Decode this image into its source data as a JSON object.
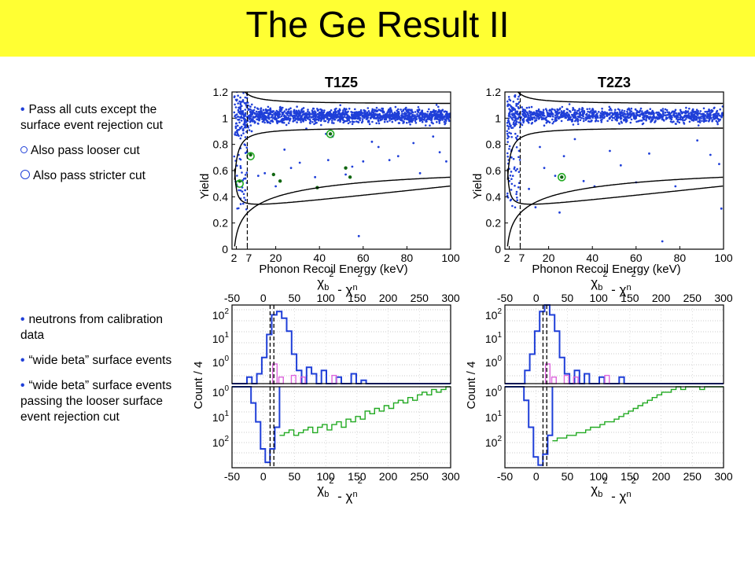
{
  "slide": {
    "title": "The Ge Result II",
    "bullets_top": [
      {
        "marker": "•",
        "text": "Pass all cuts except the surface event rejection cut"
      },
      {
        "marker": "o",
        "text": "Also pass looser cut"
      },
      {
        "marker": "O",
        "text": "Also pass stricter cut"
      }
    ],
    "bullets_bottom": [
      {
        "marker": "•",
        "text": "neutrons from calibration data"
      },
      {
        "marker": "•",
        "text": "“wide beta” surface events"
      },
      {
        "marker": "•",
        "text": "“wide beta” surface events passing the looser surface event rejection cut"
      }
    ],
    "colors": {
      "title_bg": "#ffff33",
      "events": "#1f3fd8",
      "neutrons": "#1f3fd8",
      "surface": "#22aa22",
      "surface_looser": "#dd66dd"
    }
  },
  "chart_data": [
    {
      "type": "scatter",
      "title": "T1Z5",
      "xlabel": "Phonon Recoil Energy (keV)",
      "ylabel": "Yield",
      "xlim": [
        0,
        100
      ],
      "ylim": [
        0,
        1.2
      ],
      "xticks": [
        "2",
        "7",
        "20",
        "40",
        "60",
        "80",
        "100"
      ],
      "yticks": [
        "0",
        "0.2",
        "0.4",
        "0.6",
        "0.8",
        "1",
        "1.2"
      ],
      "threshold_keV": 7,
      "bands": {
        "ER_upper_offset": 0.18,
        "ER_lower_offset": -0.15,
        "NR_upper_base": 0.52,
        "NR_lower_base": 0.33
      },
      "sparse_events": [
        [
          4,
          0.62
        ],
        [
          6,
          0.45
        ],
        [
          9,
          0.9
        ],
        [
          12,
          0.56
        ],
        [
          15,
          0.58
        ],
        [
          20,
          0.48
        ],
        [
          24,
          0.76
        ],
        [
          27,
          0.62
        ],
        [
          31,
          0.66
        ],
        [
          34,
          0.92
        ],
        [
          38,
          0.55
        ],
        [
          43,
          0.88
        ],
        [
          44,
          0.68
        ],
        [
          46,
          0.86
        ],
        [
          52,
          0.57
        ],
        [
          55,
          0.63
        ],
        [
          58,
          0.1
        ],
        [
          60,
          0.67
        ],
        [
          64,
          0.82
        ],
        [
          67,
          0.78
        ],
        [
          72,
          0.68
        ],
        [
          76,
          0.71
        ],
        [
          83,
          0.81
        ],
        [
          86,
          0.58
        ],
        [
          92,
          0.86
        ],
        [
          95,
          0.74
        ],
        [
          98,
          0.67
        ]
      ],
      "looser_cut_events": [
        [
          3.5,
          0.52
        ],
        [
          8.5,
          0.72
        ],
        [
          19,
          0.57
        ],
        [
          22,
          0.52
        ],
        [
          39,
          0.47
        ],
        [
          45,
          0.88
        ],
        [
          52,
          0.62
        ],
        [
          54,
          0.55
        ]
      ],
      "stricter_cut_events": [
        [
          3.5,
          0.5
        ],
        [
          8.5,
          0.71
        ],
        [
          45,
          0.88
        ]
      ]
    },
    {
      "type": "scatter",
      "title": "T2Z3",
      "xlabel": "Phonon Recoil Energy (keV)",
      "ylabel": "Yield",
      "xlim": [
        0,
        100
      ],
      "ylim": [
        0,
        1.2
      ],
      "xticks": [
        "2",
        "7",
        "20",
        "40",
        "60",
        "80",
        "100"
      ],
      "yticks": [
        "0",
        "0.2",
        "0.4",
        "0.6",
        "0.8",
        "1",
        "1.2"
      ],
      "threshold_keV": 7,
      "bands": {
        "ER_upper_offset": 0.18,
        "ER_lower_offset": -0.15,
        "NR_upper_base": 0.52,
        "NR_lower_base": 0.33
      },
      "sparse_events": [
        [
          3,
          0.7
        ],
        [
          5,
          0.6
        ],
        [
          11,
          0.46
        ],
        [
          16,
          0.78
        ],
        [
          18,
          0.62
        ],
        [
          23,
          0.56
        ],
        [
          27,
          0.71
        ],
        [
          32,
          0.84
        ],
        [
          36,
          0.52
        ],
        [
          41,
          0.48
        ],
        [
          48,
          0.75
        ],
        [
          53,
          0.64
        ],
        [
          60,
          0.51
        ],
        [
          66,
          0.73
        ],
        [
          72,
          0.06
        ],
        [
          78,
          0.48
        ],
        [
          88,
          0.83
        ],
        [
          94,
          0.72
        ],
        [
          98,
          0.65
        ],
        [
          99,
          0.31
        ],
        [
          14,
          0.32
        ],
        [
          25,
          0.28
        ]
      ],
      "looser_cut_events": [
        [
          26,
          0.55
        ]
      ],
      "stricter_cut_events": [
        [
          26,
          0.55
        ]
      ]
    },
    {
      "type": "histogram",
      "xlabel": "χb² - χn²",
      "ylabel": "Count / 4",
      "xlim": [
        -50,
        300
      ],
      "xticks": [
        "-50",
        "0",
        "50",
        "100",
        "150",
        "200",
        "250",
        "300"
      ],
      "cut_lines": [
        11,
        17
      ],
      "neutrons_log10_upper": [
        0,
        0,
        0,
        0.2,
        0,
        0.3,
        0.8,
        1.5,
        2.1,
        2.2,
        2.0,
        1.6,
        0.9,
        0.4,
        0,
        0.5,
        0.3,
        0,
        0.4,
        0,
        0,
        0.2,
        0,
        0,
        0.3,
        0,
        0.1,
        0,
        0,
        0
      ],
      "surface_log10_lower": [
        0,
        0,
        0,
        0,
        0.6,
        1.3,
        2.3,
        2.8,
        2.3,
        1.5,
        1.8,
        1.7,
        1.6,
        1.8,
        1.7,
        1.6,
        1.5,
        1.7,
        1.5,
        1.4,
        1.6,
        1.4,
        1.3,
        1.5,
        1.2,
        1.3,
        1.1,
        1.2,
        0.9,
        1.0,
        0.8,
        0.9,
        0.7,
        0.8,
        0.6,
        0.5,
        0.6,
        0.4,
        0.5,
        0.3,
        0.2,
        0.3,
        0.1,
        0.2,
        0.1,
        0.0
      ],
      "legend_series": [
        "neutrons",
        "wide beta surface events"
      ]
    },
    {
      "type": "histogram",
      "xlabel": "χb² - χn²",
      "ylabel": "Count / 4",
      "xlim": [
        -50,
        300
      ],
      "xticks": [
        "-50",
        "0",
        "50",
        "100",
        "150",
        "200",
        "250",
        "300"
      ],
      "cut_lines": [
        11,
        17
      ],
      "neutrons_log10_upper": [
        0,
        0,
        0,
        0,
        0.4,
        0.9,
        1.6,
        2.2,
        2.4,
        2.1,
        1.6,
        0.8,
        0.3,
        0,
        0.4,
        0,
        0.3,
        0,
        0,
        0.2,
        0,
        0,
        0,
        0.2,
        0,
        0,
        0,
        0,
        0,
        0
      ],
      "surface_log10_lower": [
        0,
        0,
        0,
        0,
        0.5,
        1.5,
        2.6,
        2.9,
        2.5,
        1.8,
        2.0,
        1.9,
        1.9,
        1.8,
        1.8,
        1.7,
        1.7,
        1.6,
        1.5,
        1.5,
        1.4,
        1.3,
        1.3,
        1.2,
        1.1,
        1.0,
        0.9,
        0.8,
        0.7,
        0.6,
        0.5,
        0.4,
        0.3,
        0.2,
        0.2,
        0.1,
        0.0,
        0.1,
        0.0,
        0.0,
        0.0,
        0.1,
        0.0,
        0.0,
        0.0,
        0.0
      ]
    }
  ]
}
